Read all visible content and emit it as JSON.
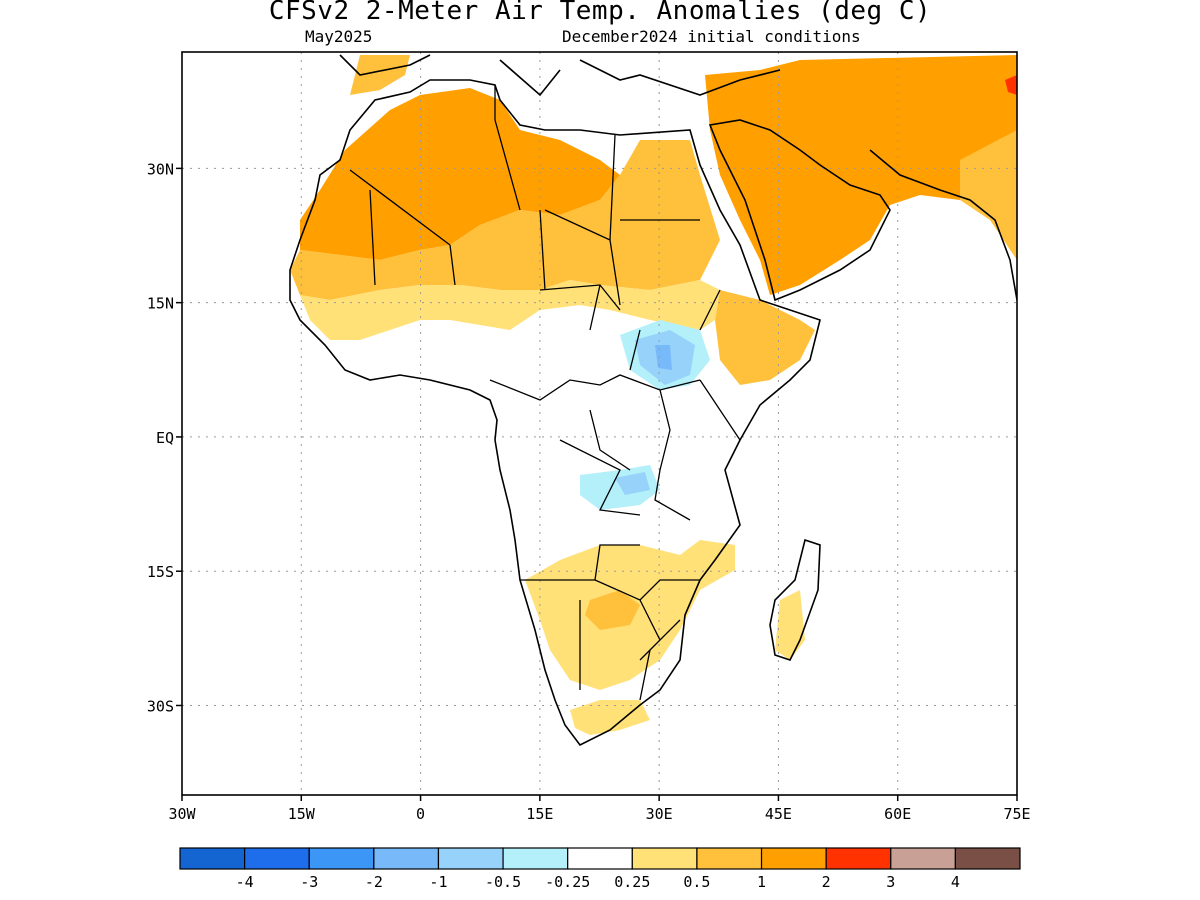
{
  "title": "CFSv2 2-Meter Air Temp. Anomalies (deg C)",
  "subtitle_left": "May2025",
  "subtitle_right": "December2024 initial conditions",
  "map": {
    "lon_range": [
      -30,
      75
    ],
    "lat_range": [
      -40,
      43
    ],
    "grid": true
  },
  "lat_ticks": [
    {
      "value": 30,
      "label": "30N"
    },
    {
      "value": 15,
      "label": "15N"
    },
    {
      "value": 0,
      "label": "EQ"
    },
    {
      "value": -15,
      "label": "15S"
    },
    {
      "value": -30,
      "label": "30S"
    }
  ],
  "lon_ticks": [
    {
      "value": -30,
      "label": "30W"
    },
    {
      "value": -15,
      "label": "15W"
    },
    {
      "value": 0,
      "label": "0"
    },
    {
      "value": 15,
      "label": "15E"
    },
    {
      "value": 30,
      "label": "30E"
    },
    {
      "value": 45,
      "label": "45E"
    },
    {
      "value": 60,
      "label": "60E"
    },
    {
      "value": 75,
      "label": "75E"
    }
  ],
  "colorbar": {
    "colors": [
      "#1464d2",
      "#1e6eeb",
      "#3c96f5",
      "#78b9fa",
      "#96d2fa",
      "#b4f0fa",
      "#ffffff",
      "#ffe178",
      "#ffc03c",
      "#ffa000",
      "#ff3200",
      "#c8a096",
      "#7a5046"
    ],
    "labels": [
      "-4",
      "-3",
      "-2",
      "-1",
      "-0.5",
      "-0.25",
      "0.25",
      "0.5",
      "1",
      "2",
      "3",
      "4"
    ]
  },
  "colors": {
    "anom_0_5": "#ffe178",
    "anom_1": "#ffc03c",
    "anom_2": "#ffa000",
    "anom_3": "#ff3200",
    "anom_neg_0_25": "#b4f0fa",
    "anom_neg_0_5": "#96d2fa",
    "anom_neg_1": "#78b9fa",
    "coast": "#000000"
  }
}
